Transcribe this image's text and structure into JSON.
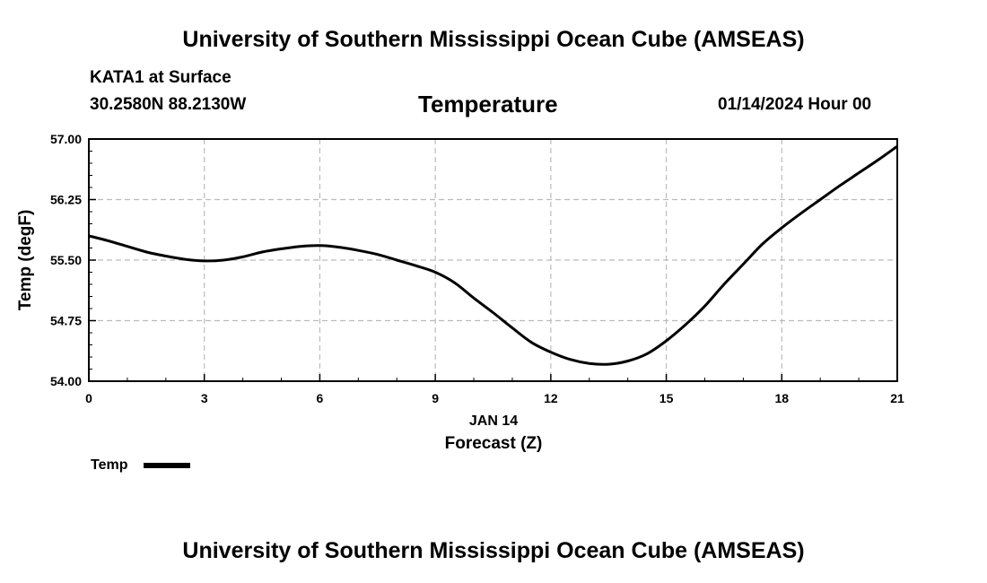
{
  "header": {
    "top_title": "University of Southern Mississippi Ocean Cube (AMSEAS)",
    "station": "KATA1 at Surface",
    "coords": "30.2580N  88.2130W",
    "variable": "Temperature",
    "datetime": "01/14/2024 Hour 00"
  },
  "footer": {
    "bottom_title": "University of Southern Mississippi Ocean Cube (AMSEAS)"
  },
  "legend": {
    "label": "Temp"
  },
  "chart_data": {
    "type": "line",
    "title": "Temperature",
    "ylabel": "Temp (degF)",
    "xlabel": "Forecast (Z)",
    "date_label": "JAN 14",
    "xlim": [
      0,
      21
    ],
    "ylim": [
      54.0,
      57.0
    ],
    "x_ticks": [
      0,
      3,
      6,
      9,
      12,
      15,
      18,
      21
    ],
    "x_tick_labels": [
      "0",
      "3",
      "6",
      "9",
      "12",
      "15",
      "18",
      "21"
    ],
    "y_ticks": [
      54.0,
      54.75,
      55.5,
      56.25,
      57.0
    ],
    "y_tick_labels": [
      "54.00",
      "54.75",
      "55.50",
      "56.25",
      "57.00"
    ],
    "grid": true,
    "line_color": "#000000",
    "grid_color": "#bbbbbb",
    "series": [
      {
        "name": "Temp",
        "x": [
          0,
          0.5,
          1,
          1.5,
          2,
          2.5,
          3,
          3.5,
          4,
          4.5,
          5,
          5.5,
          6,
          6.5,
          7,
          7.5,
          8,
          8.5,
          9,
          9.5,
          10,
          10.5,
          11,
          11.5,
          12,
          12.5,
          13,
          13.5,
          14,
          14.5,
          15,
          15.5,
          16,
          16.5,
          17,
          17.5,
          18,
          18.5,
          19,
          19.5,
          20,
          20.5,
          21
        ],
        "values": [
          55.8,
          55.74,
          55.67,
          55.6,
          55.55,
          55.51,
          55.49,
          55.5,
          55.54,
          55.6,
          55.64,
          55.67,
          55.68,
          55.66,
          55.62,
          55.57,
          55.5,
          55.43,
          55.35,
          55.22,
          55.03,
          54.85,
          54.66,
          54.48,
          54.36,
          54.27,
          54.22,
          54.21,
          54.25,
          54.34,
          54.5,
          54.7,
          54.93,
          55.2,
          55.45,
          55.7,
          55.9,
          56.08,
          56.25,
          56.42,
          56.58,
          56.74,
          56.91
        ]
      }
    ]
  }
}
